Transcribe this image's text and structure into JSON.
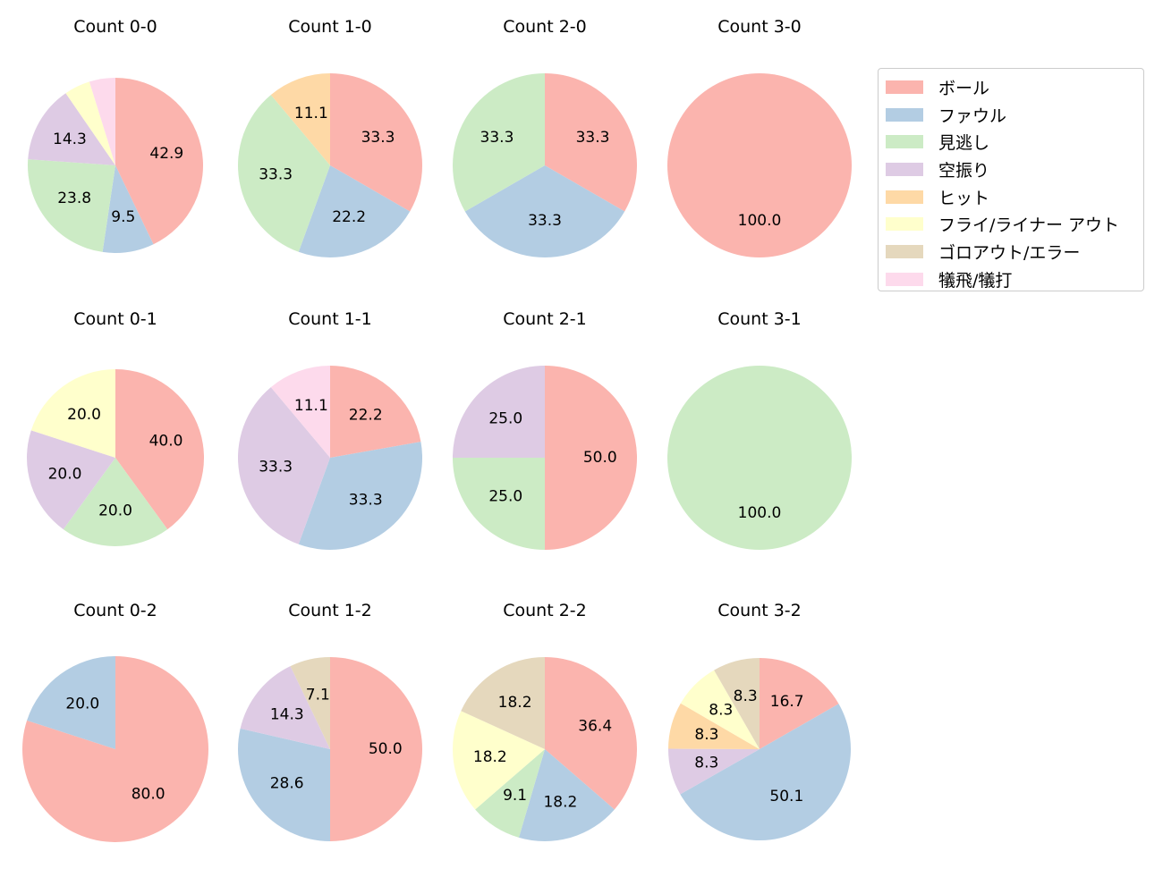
{
  "chart_data": {
    "type": "pie",
    "categories": [
      "ボール",
      "ファウル",
      "見逃し",
      "空振り",
      "ヒット",
      "フライ/ライナー アウト",
      "ゴロアウト/エラー",
      "犠飛/犠打"
    ],
    "colors": [
      "#fbb4ae",
      "#b3cde3",
      "#ccebc5",
      "#decbe4",
      "#fed9a6",
      "#ffffcc",
      "#e5d8bd",
      "#fddaec"
    ],
    "legend_position": "right",
    "start_angle": "top",
    "direction": "clockwise",
    "label_min_percent": 5,
    "pies": [
      {
        "title": "Count 0-0",
        "values": [
          42.9,
          9.5,
          23.8,
          14.3,
          0,
          4.8,
          0,
          4.8
        ]
      },
      {
        "title": "Count 1-0",
        "values": [
          33.3,
          22.2,
          33.3,
          0,
          11.1,
          0,
          0,
          0
        ]
      },
      {
        "title": "Count 2-0",
        "values": [
          33.3,
          33.3,
          33.3,
          0,
          0,
          0,
          0,
          0
        ]
      },
      {
        "title": "Count 3-0",
        "values": [
          100.0,
          0,
          0,
          0,
          0,
          0,
          0,
          0
        ]
      },
      {
        "title": "Count 0-1",
        "values": [
          40.0,
          0,
          20.0,
          20.0,
          0,
          20.0,
          0,
          0
        ]
      },
      {
        "title": "Count 1-1",
        "values": [
          22.2,
          33.3,
          0,
          33.3,
          0,
          0,
          0,
          11.1
        ]
      },
      {
        "title": "Count 2-1",
        "values": [
          50.0,
          0,
          25.0,
          25.0,
          0,
          0,
          0,
          0
        ]
      },
      {
        "title": "Count 3-1",
        "values": [
          0,
          0,
          100.0,
          0,
          0,
          0,
          0,
          0
        ]
      },
      {
        "title": "Count 0-2",
        "values": [
          80.0,
          20.0,
          0,
          0,
          0,
          0,
          0,
          0
        ]
      },
      {
        "title": "Count 1-2",
        "values": [
          50.0,
          28.6,
          0,
          14.3,
          0,
          0,
          7.1,
          0
        ]
      },
      {
        "title": "Count 2-2",
        "values": [
          36.4,
          18.2,
          9.1,
          0,
          0,
          18.2,
          18.2,
          0
        ]
      },
      {
        "title": "Count 3-2",
        "values": [
          16.7,
          50.0,
          0,
          8.3,
          8.3,
          8.3,
          8.3,
          0
        ]
      }
    ]
  }
}
